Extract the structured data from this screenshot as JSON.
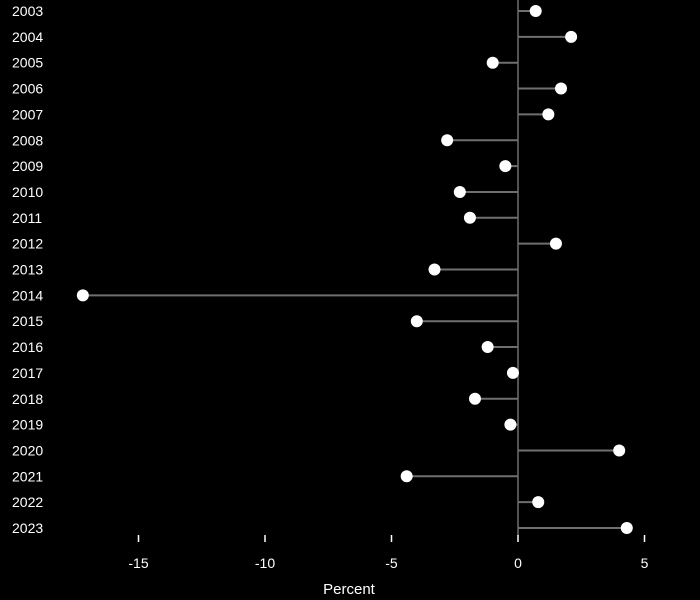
{
  "chart_data": {
    "type": "lollipop",
    "categories": [
      "2003",
      "2004",
      "2005",
      "2006",
      "2007",
      "2008",
      "2009",
      "2010",
      "2011",
      "2012",
      "2013",
      "2014",
      "2015",
      "2016",
      "2017",
      "2018",
      "2019",
      "2020",
      "2021",
      "2022",
      "2023"
    ],
    "values": [
      0.7,
      2.1,
      -1.0,
      1.7,
      1.2,
      -2.8,
      -0.5,
      -2.3,
      -1.9,
      1.5,
      -3.3,
      -17.2,
      -4.0,
      -1.2,
      -0.2,
      -1.7,
      -0.3,
      4.0,
      -4.4,
      0.8,
      4.3
    ],
    "xlabel": "Percent",
    "xlim": [
      -17.2,
      5
    ],
    "xticks": [
      -15,
      -10,
      -5,
      0,
      5
    ],
    "xtick_labels": [
      "-15",
      "-10",
      "-5",
      "0",
      "5"
    ],
    "grid": false,
    "colors": {
      "background": "#000000",
      "marker": "#ffffff",
      "stem": "#6f6f6f",
      "text": "#ffffff"
    }
  }
}
